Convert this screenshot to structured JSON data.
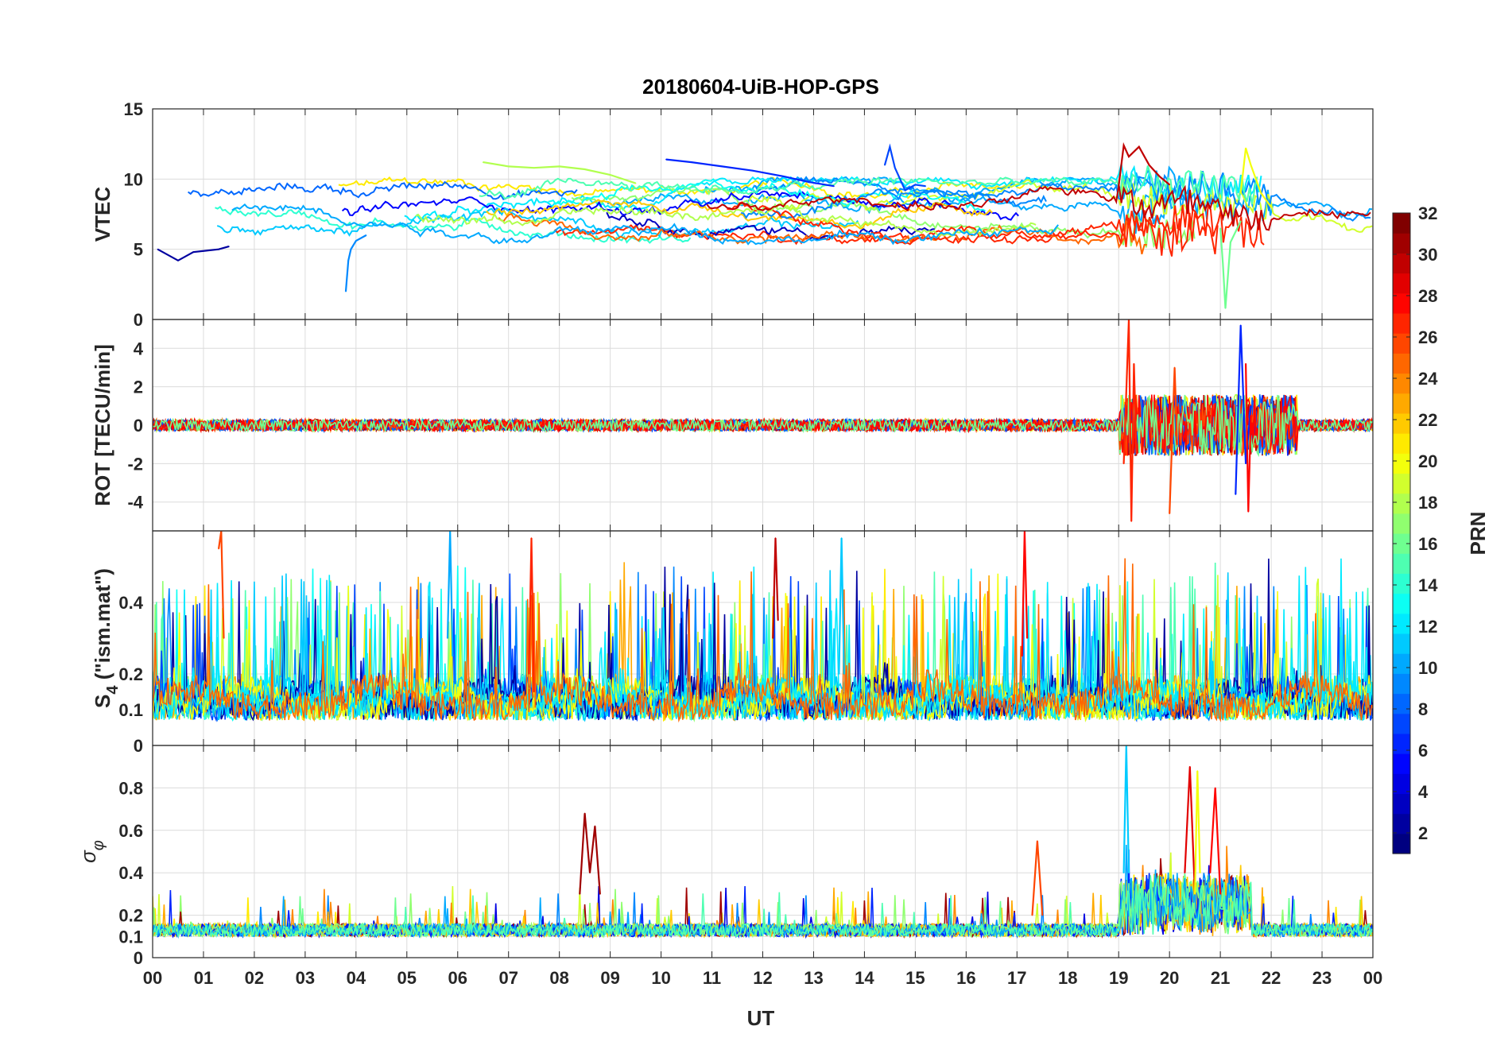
{
  "chart_data": {
    "type": "line",
    "title": "20180604-UiB-HOP-GPS",
    "xlabel": "UT",
    "x_tick_labels": [
      "00",
      "01",
      "02",
      "03",
      "04",
      "05",
      "06",
      "07",
      "08",
      "09",
      "10",
      "11",
      "12",
      "13",
      "14",
      "15",
      "16",
      "17",
      "18",
      "19",
      "20",
      "21",
      "22",
      "23",
      "00"
    ],
    "xlim_hours": [
      0,
      24
    ],
    "colorbar": {
      "label": "PRN",
      "range": [
        1,
        32
      ],
      "ticks": [
        "2",
        "4",
        "6",
        "8",
        "10",
        "12",
        "14",
        "16",
        "18",
        "20",
        "22",
        "24",
        "26",
        "28",
        "30",
        "32"
      ]
    },
    "panels": [
      {
        "id": "vtec",
        "ylabel": "VTEC",
        "ylim": [
          0,
          15
        ],
        "y_ticks": [
          0,
          5,
          10,
          15
        ],
        "y_tick_labels": [
          "0",
          "5",
          "10",
          "15"
        ],
        "series_summary": "Per-PRN VTEC traces mostly between 6 and 10 TECU; peak near 12.5 TECU around 19 UT",
        "series": [
          {
            "prn": 2,
            "x": [
              0.1,
              0.5,
              0.8,
              1.3,
              1.5
            ],
            "values": [
              5.0,
              4.2,
              4.8,
              5.0,
              5.2
            ]
          },
          {
            "prn": 30,
            "x": [
              19.0,
              19.1,
              19.2,
              19.4,
              19.6,
              19.8,
              20.0
            ],
            "values": [
              9.5,
              12.4,
              11.6,
              12.3,
              11.0,
              10.2,
              9.6
            ]
          },
          {
            "prn": 6,
            "x": [
              10.1,
              10.6,
              11.2,
              11.8,
              12.4,
              12.9,
              13.4
            ],
            "values": [
              11.4,
              11.2,
              10.9,
              10.6,
              10.2,
              9.8,
              9.5
            ]
          },
          {
            "prn": 18,
            "x": [
              6.5,
              7.0,
              7.5,
              8.0,
              8.5,
              9.0,
              9.5
            ],
            "values": [
              11.2,
              10.9,
              10.8,
              10.9,
              10.7,
              10.3,
              9.7
            ]
          },
          {
            "prn": 9,
            "x": [
              3.8,
              3.85,
              3.9,
              4.0,
              4.2
            ],
            "values": [
              2.0,
              4.2,
              5.0,
              5.6,
              6.0
            ]
          },
          {
            "prn": 16,
            "x": [
              21.0,
              21.05,
              21.1,
              21.2,
              21.4
            ],
            "values": [
              6.5,
              4.0,
              0.8,
              5.5,
              7.0
            ]
          },
          {
            "prn": 20,
            "x": [
              21.4,
              21.5,
              21.6,
              21.8,
              22.0
            ],
            "values": [
              9.0,
              12.2,
              11.0,
              9.0,
              8.0
            ]
          },
          {
            "prn": 7,
            "x": [
              14.4,
              14.5,
              14.6,
              14.8,
              15.0,
              15.2
            ],
            "values": [
              11.0,
              12.3,
              10.8,
              9.2,
              9.6,
              9.5
            ]
          }
        ]
      },
      {
        "id": "rot",
        "ylabel": "ROT [TECU/min]",
        "ylim": [
          -5.5,
          5.5
        ],
        "y_ticks": [
          -4,
          -2,
          0,
          2,
          4
        ],
        "y_tick_labels": [
          "-4",
          "-2",
          "0",
          "2",
          "4"
        ],
        "series_summary": "Near zero most of the day; strong fluctuations from about 19 to 22 UT reaching about +5.5 and -5 TECU/min",
        "series": [
          {
            "prn": 27,
            "x": [
              19.1,
              19.2,
              19.25,
              19.3,
              19.35
            ],
            "values": [
              -2.0,
              5.5,
              -5.0,
              3.2,
              -1.5
            ]
          },
          {
            "prn": 6,
            "x": [
              21.3,
              21.4,
              21.5,
              21.6
            ],
            "values": [
              -3.6,
              5.2,
              -2.0,
              1.0
            ]
          },
          {
            "prn": 28,
            "x": [
              21.5,
              21.55,
              21.6
            ],
            "values": [
              3.2,
              -4.5,
              0.5
            ]
          },
          {
            "prn": 26,
            "x": [
              20.0,
              20.1,
              20.15
            ],
            "values": [
              -4.6,
              3.0,
              -1.0
            ]
          }
        ]
      },
      {
        "id": "s4",
        "ylabel": "S4 (\"ism.mat\")",
        "ylabel_main": "S",
        "ylabel_sub": "4",
        "ylabel_rest": " (\"ism.mat\")",
        "ylim": [
          0,
          0.6
        ],
        "y_ticks": [
          0,
          0.1,
          0.2,
          0.4
        ],
        "y_tick_labels": [
          "0",
          "0.1",
          "0.2",
          "0.4"
        ],
        "series_summary": "Baseline 0.05-0.1 with frequent spikes to 0.3-0.6 throughout the day",
        "series": [
          {
            "prn": 26,
            "x": [
              1.3,
              1.35,
              1.4
            ],
            "values": [
              0.55,
              0.6,
              0.3
            ]
          },
          {
            "prn": 10,
            "x": [
              5.8,
              5.85,
              5.9
            ],
            "values": [
              0.3,
              0.6,
              0.25
            ]
          },
          {
            "prn": 27,
            "x": [
              7.4,
              7.45,
              7.5
            ],
            "values": [
              0.2,
              0.58,
              0.15
            ]
          },
          {
            "prn": 30,
            "x": [
              12.2,
              12.25,
              12.3
            ],
            "values": [
              0.3,
              0.58,
              0.35
            ]
          },
          {
            "prn": 11,
            "x": [
              13.5,
              13.55,
              13.6
            ],
            "values": [
              0.2,
              0.58,
              0.2
            ]
          },
          {
            "prn": 28,
            "x": [
              17.1,
              17.15,
              17.2
            ],
            "values": [
              0.25,
              0.6,
              0.3
            ]
          }
        ]
      },
      {
        "id": "sigma_phi",
        "ylabel": "σ φ",
        "ylabel_main": "σ",
        "ylabel_sub": "φ",
        "ylim": [
          0,
          1
        ],
        "y_ticks": [
          0,
          0.1,
          0.2,
          0.4,
          0.6,
          0.8
        ],
        "y_tick_labels": [
          "0",
          "0.1",
          "0.2",
          "0.4",
          "0.6",
          "0.8"
        ],
        "series_summary": "Baseline around 0.1-0.15 with bursts near 5, 8.5, 12, 17.5 UT and strong peaks 19-21.5 UT",
        "series": [
          {
            "prn": 31,
            "x": [
              8.4,
              8.5,
              8.6,
              8.7,
              8.8
            ],
            "values": [
              0.3,
              0.68,
              0.4,
              0.62,
              0.3
            ]
          },
          {
            "prn": 11,
            "x": [
              19.1,
              19.15,
              19.2
            ],
            "values": [
              0.4,
              1.0,
              0.4
            ]
          },
          {
            "prn": 29,
            "x": [
              20.3,
              20.4,
              20.5
            ],
            "values": [
              0.4,
              0.9,
              0.3
            ]
          },
          {
            "prn": 20,
            "x": [
              20.5,
              20.55,
              20.6
            ],
            "values": [
              0.3,
              0.88,
              0.4
            ]
          },
          {
            "prn": 28,
            "x": [
              20.8,
              20.9,
              21.0
            ],
            "values": [
              0.4,
              0.8,
              0.3
            ]
          },
          {
            "prn": 26,
            "x": [
              17.3,
              17.4,
              17.5
            ],
            "values": [
              0.2,
              0.55,
              0.2
            ]
          }
        ]
      }
    ]
  }
}
